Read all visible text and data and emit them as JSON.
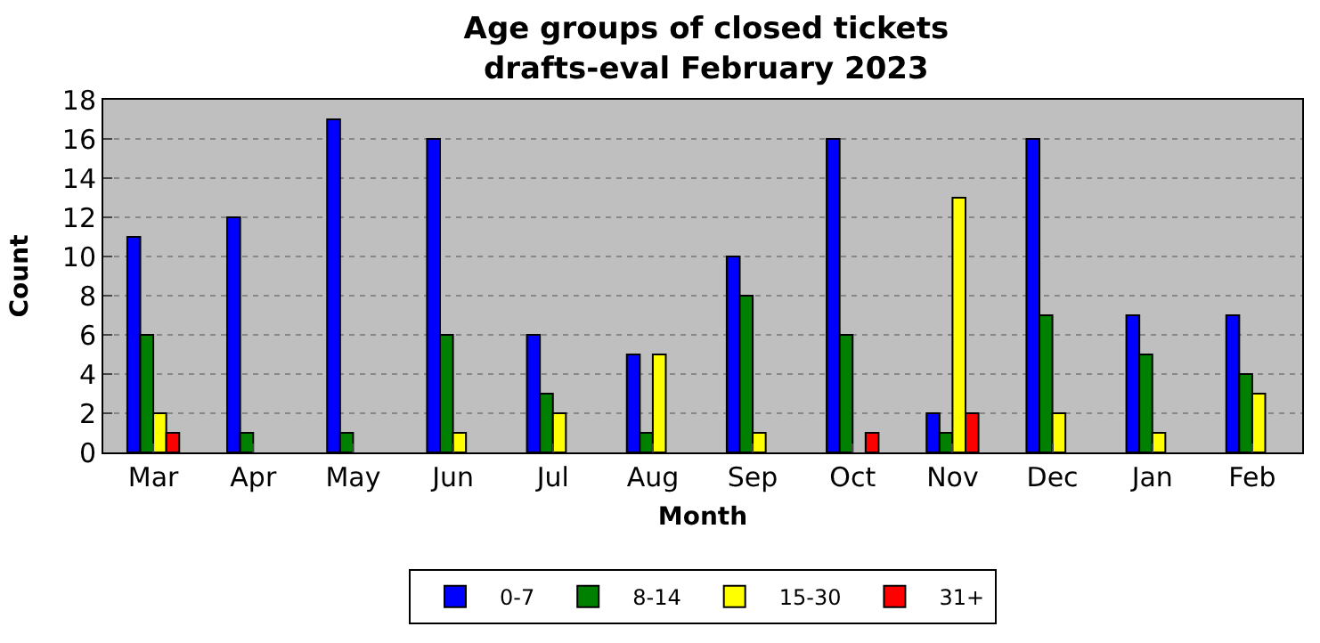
{
  "chart_data": {
    "type": "bar",
    "title": "Age groups of closed tickets\ndrafts-eval February 2023",
    "xlabel": "Month",
    "ylabel": "Count",
    "categories": [
      "Mar",
      "Apr",
      "May",
      "Jun",
      "Jul",
      "Aug",
      "Sep",
      "Oct",
      "Nov",
      "Dec",
      "Jan",
      "Feb"
    ],
    "series": [
      {
        "name": "0-7",
        "color": "#0000ff",
        "values": [
          11,
          12,
          17,
          16,
          6,
          5,
          10,
          16,
          2,
          16,
          7,
          7
        ]
      },
      {
        "name": "8-14",
        "color": "#008000",
        "values": [
          6,
          1,
          1,
          6,
          3,
          1,
          8,
          6,
          1,
          7,
          5,
          4
        ]
      },
      {
        "name": "15-30",
        "color": "#ffff00",
        "values": [
          2,
          0,
          0,
          1,
          2,
          5,
          1,
          0,
          13,
          2,
          1,
          3
        ]
      },
      {
        "name": "31+",
        "color": "#ff0000",
        "values": [
          1,
          0,
          0,
          0,
          0,
          0,
          0,
          1,
          2,
          0,
          0,
          0
        ]
      }
    ],
    "ylim": [
      0,
      18
    ],
    "yticks": [
      0,
      2,
      4,
      6,
      8,
      10,
      12,
      14,
      16,
      18
    ],
    "grid": "y",
    "legend": "bottom"
  }
}
